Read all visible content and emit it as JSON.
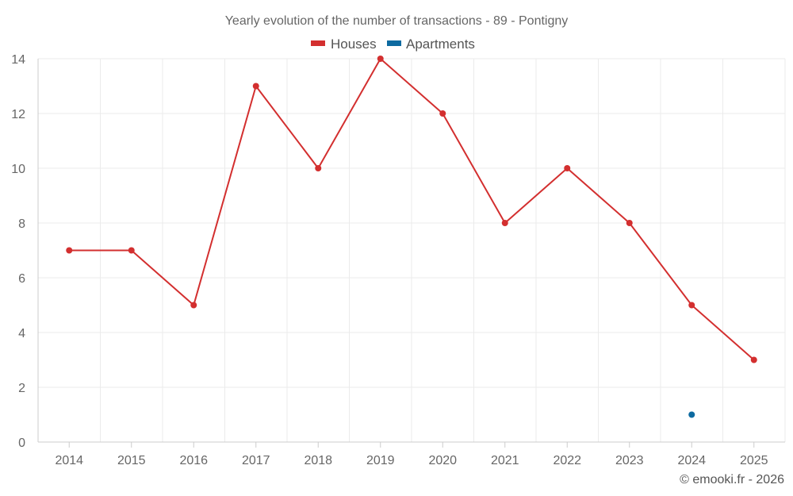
{
  "chart_data": {
    "type": "line",
    "title": "Yearly evolution of the number of transactions - 89 - Pontigny",
    "categories": [
      "2014",
      "2015",
      "2016",
      "2017",
      "2018",
      "2019",
      "2020",
      "2021",
      "2022",
      "2023",
      "2024",
      "2025"
    ],
    "series": [
      {
        "name": "Houses",
        "color": "#d32f2f",
        "values": [
          7,
          7,
          5,
          13,
          10,
          14,
          12,
          8,
          10,
          8,
          5,
          3
        ]
      },
      {
        "name": "Apartments",
        "color": "#0d6aa0",
        "values": [
          null,
          null,
          null,
          null,
          null,
          null,
          null,
          null,
          null,
          null,
          1,
          null
        ]
      }
    ],
    "ylim": [
      0,
      14
    ],
    "yticks": [
      0,
      2,
      4,
      6,
      8,
      10,
      12,
      14
    ],
    "xlabel": "",
    "ylabel": "",
    "grid": true,
    "legend": "top-center"
  },
  "credit": "© emooki.fr - 2026"
}
